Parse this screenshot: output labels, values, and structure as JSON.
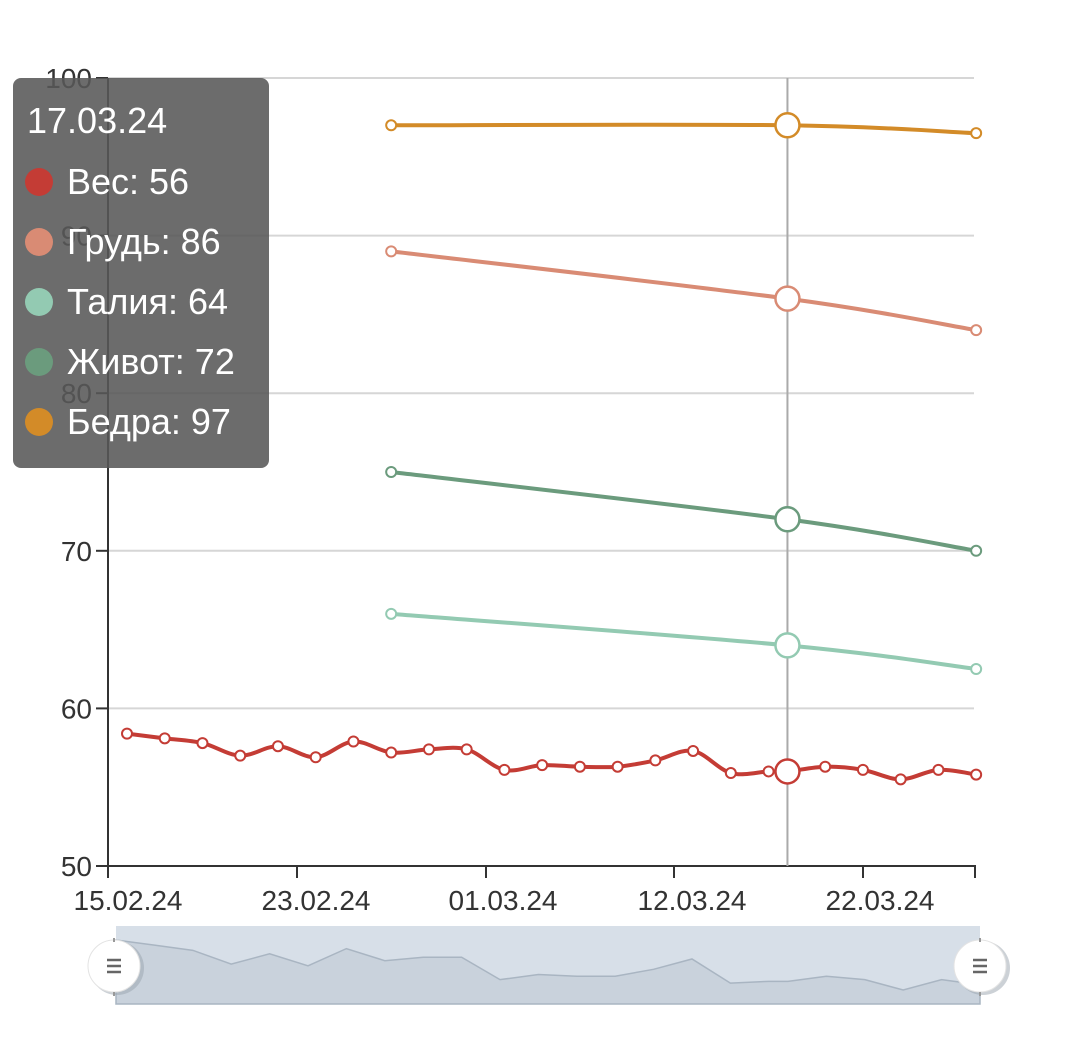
{
  "chart_data": {
    "type": "line",
    "x_axis": {
      "ticks": [
        "15.02.24",
        "23.02.24",
        "01.03.24",
        "12.03.24",
        "22.03.24"
      ]
    },
    "y_axis": {
      "ticks": [
        50,
        60,
        70,
        80,
        90,
        100
      ],
      "ylim": [
        50,
        100
      ]
    },
    "grid": true,
    "x_days": [
      0,
      40
    ],
    "series": [
      {
        "name": "Вес",
        "color": "#c43c35",
        "x": [
          0,
          2,
          4,
          6,
          8,
          10,
          12,
          14,
          16,
          18,
          20,
          22,
          24,
          26,
          28,
          30,
          32,
          34,
          35,
          37,
          39,
          41,
          43,
          45
        ],
        "values": [
          58.4,
          58.1,
          57.8,
          57.0,
          57.6,
          56.9,
          57.9,
          57.2,
          57.4,
          57.4,
          56.1,
          56.4,
          56.3,
          56.3,
          56.7,
          57.3,
          55.9,
          56.0,
          56.0,
          56.3,
          56.1,
          55.5,
          56.1,
          55.8
        ]
      },
      {
        "name": "Грудь",
        "color": "#d98b74",
        "x": [
          14,
          35,
          45
        ],
        "values": [
          89,
          86,
          84
        ]
      },
      {
        "name": "Талия",
        "color": "#93cab2",
        "x": [
          14,
          35,
          45
        ],
        "values": [
          66,
          64,
          62.5
        ]
      },
      {
        "name": "Живот",
        "color": "#6b9b7d",
        "x": [
          14,
          35,
          45
        ],
        "values": [
          75,
          72,
          70
        ]
      },
      {
        "name": "Бедра",
        "color": "#d38b28",
        "x": [
          14,
          35,
          45
        ],
        "values": [
          97,
          97,
          96.5
        ]
      }
    ],
    "highlight": {
      "x": 35,
      "date": "17.03.24"
    }
  },
  "tooltip": {
    "date": "17.03.24",
    "rows": [
      {
        "label": "Вес: 56",
        "color": "#c43c35"
      },
      {
        "label": "Грудь: 86",
        "color": "#d98b74"
      },
      {
        "label": "Талия: 64",
        "color": "#93cab2"
      },
      {
        "label": "Живот: 72",
        "color": "#6b9b7d"
      },
      {
        "label": "Бедра: 97",
        "color": "#d38b28"
      }
    ]
  },
  "data_zoom": {
    "range_start_percent": 0,
    "range_end_percent": 100
  }
}
